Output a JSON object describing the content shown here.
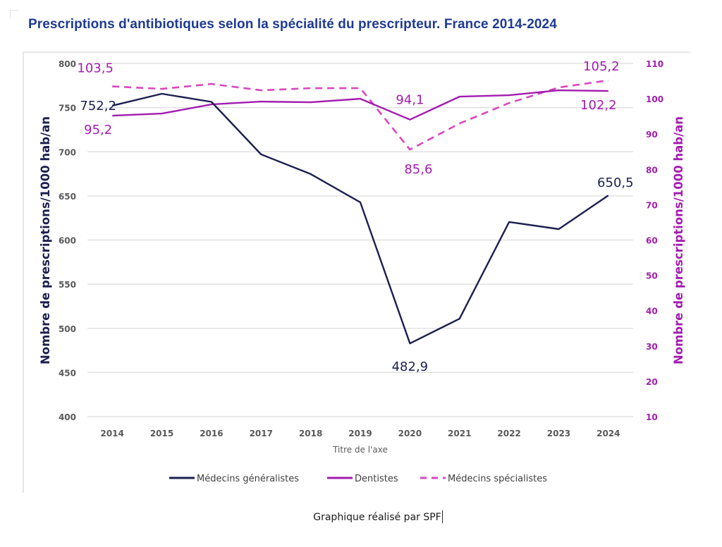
{
  "page": {
    "title": "Prescriptions d'antibiotiques selon la spécialité du prescripteur. France 2014-2024",
    "credit": "Graphique réalisé par SPF"
  },
  "colors": {
    "generalistes": "#1b1f4f",
    "dentistes": "#a21caf",
    "specialistes": "#d946c0",
    "left_axis_title": "#1b1f4f",
    "right_axis": "#a21caf",
    "grid": "#dcdcdc",
    "tick_text": "#595959",
    "title": "#1f3a93"
  },
  "chart_data": {
    "type": "line",
    "title": "Prescriptions d'antibiotiques selon la spécialité du prescripteur. France 2014-2024",
    "xlabel": "Titre de l'axe",
    "ylabel": "Nombre de prescriptions/1000 hab/an",
    "y2label": "Nombre de prescriptions/1000 hab/an",
    "x": [
      "2014",
      "2015",
      "2016",
      "2017",
      "2018",
      "2019",
      "2020",
      "2021",
      "2022",
      "2023",
      "2024"
    ],
    "ylim": [
      400,
      800
    ],
    "y_ticks": [
      "800",
      "750",
      "700",
      "650",
      "600",
      "550",
      "500",
      "450",
      "400"
    ],
    "y2lim": [
      10,
      110
    ],
    "y2_ticks": [
      "110",
      "100",
      "90",
      "80",
      "70",
      "60",
      "50",
      "40",
      "30",
      "20",
      "10"
    ],
    "grid": true,
    "legend_position": "bottom",
    "series": [
      {
        "name": "Médecins généralistes",
        "axis": "left",
        "style": "solid",
        "values": [
          752.2,
          765.7,
          756.5,
          697.0,
          674.7,
          642.7,
          482.9,
          510.8,
          620.4,
          612.4,
          650.5
        ]
      },
      {
        "name": "Dentistes",
        "axis": "right",
        "style": "solid",
        "values": [
          95.2,
          95.8,
          98.4,
          99.2,
          99.0,
          100.0,
          94.1,
          100.6,
          101.0,
          102.4,
          102.2
        ]
      },
      {
        "name": "Médecins spécialistes",
        "axis": "right",
        "style": "dashed",
        "values": [
          103.5,
          102.8,
          104.2,
          102.4,
          103.0,
          103.0,
          85.6,
          93.0,
          98.8,
          103.2,
          105.2
        ]
      }
    ],
    "annotations": [
      {
        "series": "Médecins généralistes",
        "x": "2014",
        "text": "752,2"
      },
      {
        "series": "Médecins généralistes",
        "x": "2020",
        "text": "482,9"
      },
      {
        "series": "Médecins généralistes",
        "x": "2024",
        "text": "650,5"
      },
      {
        "series": "Dentistes",
        "x": "2014",
        "text": "95,2"
      },
      {
        "series": "Dentistes",
        "x": "2020",
        "text": "94,1"
      },
      {
        "series": "Dentistes",
        "x": "2024",
        "text": "102,2"
      },
      {
        "series": "Médecins spécialistes",
        "x": "2014",
        "text": "103,5"
      },
      {
        "series": "Médecins spécialistes",
        "x": "2020",
        "text": "85,6"
      },
      {
        "series": "Médecins spécialistes",
        "x": "2024",
        "text": "105,2"
      }
    ]
  }
}
